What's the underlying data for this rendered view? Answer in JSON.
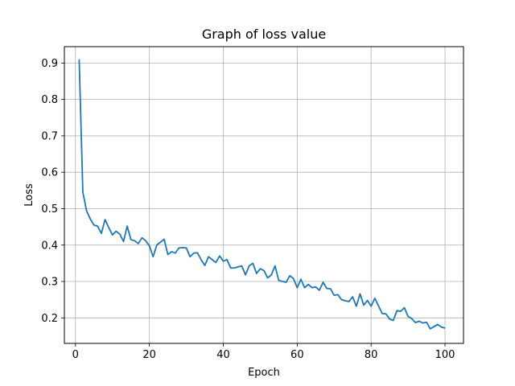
{
  "chart_data": {
    "type": "line",
    "title": "Graph of loss value",
    "xlabel": "Epoch",
    "ylabel": "Loss",
    "xlim": [
      -3,
      105
    ],
    "ylim": [
      0.13,
      0.945
    ],
    "grid": true,
    "x_ticks": [
      0,
      20,
      40,
      60,
      80,
      100
    ],
    "y_ticks": [
      0.2,
      0.3,
      0.4,
      0.5,
      0.6,
      0.7,
      0.8,
      0.9
    ],
    "x_tick_labels": [
      "0",
      "20",
      "40",
      "60",
      "80",
      "100"
    ],
    "y_tick_labels": [
      "0.2",
      "0.3",
      "0.4",
      "0.5",
      "0.6",
      "0.7",
      "0.8",
      "0.9"
    ],
    "series": [
      {
        "color": "#1f77b4",
        "x": [
          1,
          2,
          3,
          4,
          5,
          6,
          7,
          8,
          9,
          10,
          11,
          12,
          13,
          14,
          15,
          16,
          17,
          18,
          19,
          20,
          21,
          22,
          23,
          24,
          25,
          26,
          27,
          28,
          29,
          30,
          31,
          32,
          33,
          34,
          35,
          36,
          37,
          38,
          39,
          40,
          41,
          42,
          43,
          44,
          45,
          46,
          47,
          48,
          49,
          50,
          51,
          52,
          53,
          54,
          55,
          56,
          57,
          58,
          59,
          60,
          61,
          62,
          63,
          64,
          65,
          66,
          67,
          68,
          69,
          70,
          71,
          72,
          73,
          74,
          75,
          76,
          77,
          78,
          79,
          80,
          81,
          82,
          83,
          84,
          85,
          86,
          87,
          88,
          89,
          90,
          91,
          92,
          93,
          94,
          95,
          96,
          97,
          98,
          99,
          100
        ],
        "y": [
          0.91,
          0.545,
          0.494,
          0.472,
          0.455,
          0.452,
          0.432,
          0.47,
          0.448,
          0.428,
          0.438,
          0.43,
          0.41,
          0.452,
          0.415,
          0.412,
          0.404,
          0.42,
          0.412,
          0.398,
          0.368,
          0.4,
          0.408,
          0.416,
          0.374,
          0.382,
          0.378,
          0.392,
          0.393,
          0.392,
          0.368,
          0.378,
          0.379,
          0.36,
          0.344,
          0.368,
          0.36,
          0.352,
          0.37,
          0.356,
          0.36,
          0.337,
          0.337,
          0.34,
          0.343,
          0.318,
          0.343,
          0.35,
          0.322,
          0.335,
          0.33,
          0.31,
          0.318,
          0.343,
          0.303,
          0.3,
          0.298,
          0.316,
          0.308,
          0.283,
          0.306,
          0.283,
          0.292,
          0.283,
          0.285,
          0.276,
          0.298,
          0.281,
          0.28,
          0.262,
          0.264,
          0.25,
          0.247,
          0.245,
          0.258,
          0.232,
          0.266,
          0.235,
          0.248,
          0.232,
          0.254,
          0.233,
          0.212,
          0.211,
          0.197,
          0.193,
          0.22,
          0.218,
          0.228,
          0.204,
          0.198,
          0.187,
          0.191,
          0.186,
          0.188,
          0.17,
          0.176,
          0.182,
          0.175,
          0.172
        ]
      }
    ]
  }
}
